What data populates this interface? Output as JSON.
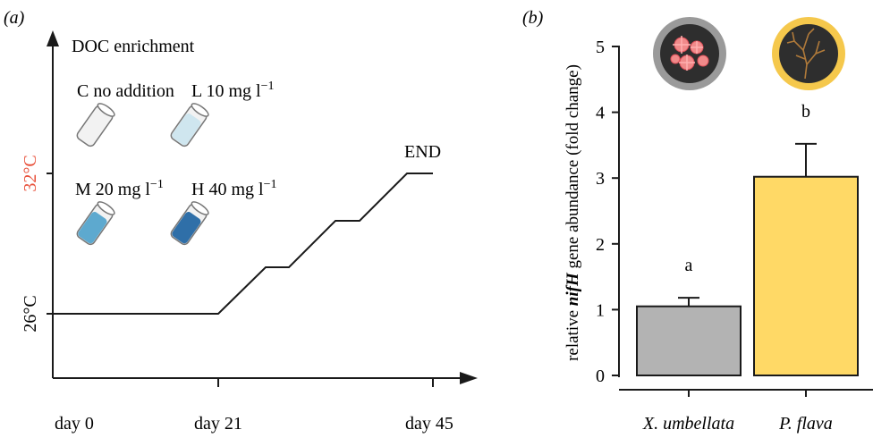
{
  "panel_a": {
    "label": "(a)",
    "y_title": "DOC enrichment",
    "temp_high": "32°C",
    "temp_low": "26°C",
    "treatments": [
      {
        "code": "C",
        "text": "no addition",
        "sup": "",
        "fill": "#f2f2f2"
      },
      {
        "code": "L",
        "text": "10 mg l",
        "sup": "−1",
        "fill": "#cfe6ef"
      },
      {
        "code": "M",
        "text": "20 mg l",
        "sup": "−1",
        "fill": "#5da9cf"
      },
      {
        "code": "H",
        "text": "40 mg l",
        "sup": "−1",
        "fill": "#2f6fa8"
      }
    ],
    "end_label": "END",
    "x_ticks": [
      "day 0",
      "day 21",
      "day 45"
    ],
    "colors": {
      "temp_high": "#e8503a",
      "line": "#1a1a1a"
    }
  },
  "panel_b": {
    "label": "(b)",
    "ylabel_pre": "relative ",
    "ylabel_gene": "nifH",
    "ylabel_post": " gene abundance (fold change)",
    "coral_icons": [
      "red-coral-icon",
      "brown-soft-coral-icon"
    ]
  },
  "chart_data": {
    "type": "bar",
    "categories": [
      "X. umbellata",
      "P. flava"
    ],
    "values": [
      1.05,
      3.02
    ],
    "errors": [
      0.13,
      0.5
    ],
    "sig_letters": [
      "a",
      "b"
    ],
    "colors": [
      "#b3b3b3",
      "#ffd966"
    ],
    "ylim": [
      0,
      5
    ],
    "yticks": [
      0,
      1,
      2,
      3,
      4,
      5
    ]
  }
}
